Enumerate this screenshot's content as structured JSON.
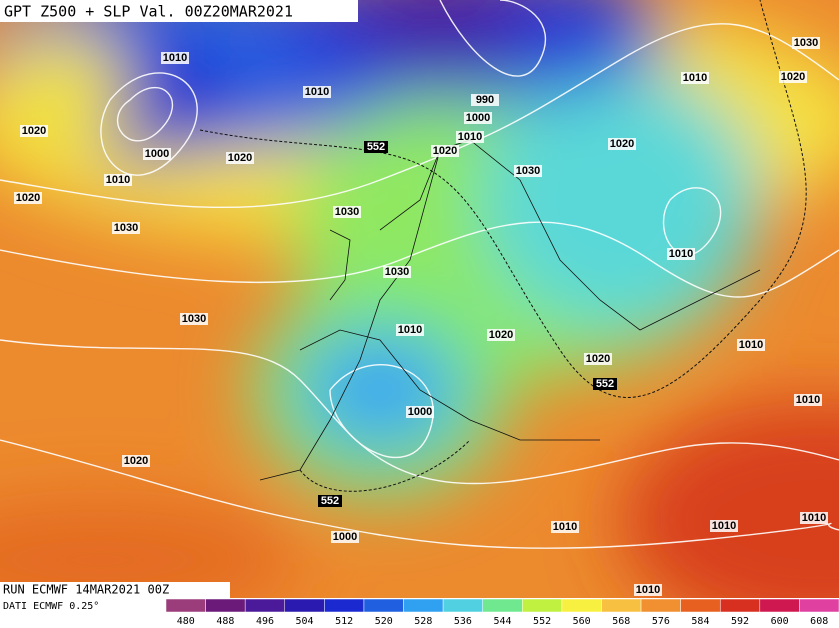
{
  "header": {
    "title": "GPT Z500 + SLP Val. 00Z20MAR2021"
  },
  "footer": {
    "run": "RUN ECMWF 14MAR2021 00Z",
    "source": "DATI ECMWF 0.25°"
  },
  "colorbar": {
    "ticks": [
      480,
      488,
      496,
      504,
      512,
      520,
      528,
      536,
      544,
      552,
      560,
      568,
      576,
      584,
      592,
      600,
      608
    ],
    "colors": [
      "#9b3d7a",
      "#6b1a7a",
      "#4a1a9a",
      "#2a1ab0",
      "#1a2ad0",
      "#2060e0",
      "#30a0f0",
      "#50d0e0",
      "#70e890",
      "#c0f040",
      "#f8f040",
      "#f8c040",
      "#f09030",
      "#e86020",
      "#d83020",
      "#d01850",
      "#e040a0"
    ]
  },
  "isobar_labels": [
    "1010",
    "1010",
    "990",
    "1000",
    "1010",
    "1020",
    "1030",
    "1020",
    "1010",
    "1030",
    "1020",
    "1020",
    "1000",
    "1020",
    "1010",
    "1020",
    "1030",
    "1030",
    "1010",
    "1030",
    "1030",
    "1010",
    "1020",
    "1020",
    "1010",
    "1000",
    "1010",
    "1020",
    "1000",
    "1010",
    "1010",
    "1010",
    "1010"
  ],
  "contour_labels": [
    "552",
    "552",
    "552"
  ]
}
